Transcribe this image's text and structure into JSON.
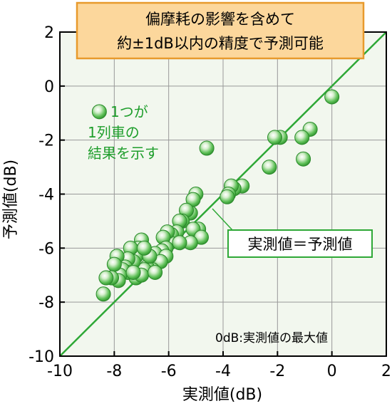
{
  "chart_data": {
    "type": "scatter",
    "title_lines": [
      "偏摩耗の影響を含めて",
      "約±1dB以内の精度で予測可能"
    ],
    "xlabel": "実測値(dB)",
    "ylabel": "予測値(dB)",
    "xlim": [
      -10,
      2
    ],
    "ylim": [
      -10,
      2
    ],
    "xticks": [
      -10,
      -8,
      -6,
      -4,
      -2,
      0,
      2
    ],
    "yticks": [
      -10,
      -8,
      -6,
      -4,
      -2,
      0,
      2
    ],
    "grid": true,
    "reference_line_label": "実測値＝予測値",
    "legend_marker_lines": [
      "1つが",
      "1列車の",
      "結果を示す"
    ],
    "footnote": "0dB:実測値の最大値",
    "colors": {
      "point": "#2ea836",
      "line": "#2ea836",
      "title_bg": "#fcd79c",
      "title_border": "#e89a2c",
      "plot_bg": "#f2f7ee",
      "annotation": "#1f9e2c"
    },
    "points": [
      [
        0,
        -0.4
      ],
      [
        -0.8,
        -1.6
      ],
      [
        -1.1,
        -1.9
      ],
      [
        -1.05,
        -2.7
      ],
      [
        -1.9,
        -1.9
      ],
      [
        -2.1,
        -1.9
      ],
      [
        -2.3,
        -3.0
      ],
      [
        -4.6,
        -2.3
      ],
      [
        -3.3,
        -3.7
      ],
      [
        -3.6,
        -3.8
      ],
      [
        -3.7,
        -3.7
      ],
      [
        -3.8,
        -4.0
      ],
      [
        -3.85,
        -4.1
      ],
      [
        -5.0,
        -4.0
      ],
      [
        -5.1,
        -4.2
      ],
      [
        -5.2,
        -4.7
      ],
      [
        -5.35,
        -4.6
      ],
      [
        -5.5,
        -5.0
      ],
      [
        -4.9,
        -5.3
      ],
      [
        -5.1,
        -5.3
      ],
      [
        -4.8,
        -5.6
      ],
      [
        -5.2,
        -5.8
      ],
      [
        -5.6,
        -5.0
      ],
      [
        -5.7,
        -5.4
      ],
      [
        -5.9,
        -5.5
      ],
      [
        -5.95,
        -5.8
      ],
      [
        -6.05,
        -5.4
      ],
      [
        -5.6,
        -5.8
      ],
      [
        -6.2,
        -5.6
      ],
      [
        -6.1,
        -6.0
      ],
      [
        -6.25,
        -6.1
      ],
      [
        -6.5,
        -6.2
      ],
      [
        -6.1,
        -6.3
      ],
      [
        -6.3,
        -6.5
      ],
      [
        -6.6,
        -6.8
      ],
      [
        -6.8,
        -6.7
      ],
      [
        -6.9,
        -6.8
      ],
      [
        -7.0,
        -5.7
      ],
      [
        -7.1,
        -6.0
      ],
      [
        -7.0,
        -6.1
      ],
      [
        -7.2,
        -6.3
      ],
      [
        -7.4,
        -6.0
      ],
      [
        -7.3,
        -6.5
      ],
      [
        -7.5,
        -6.4
      ],
      [
        -7.6,
        -6.7
      ],
      [
        -7.2,
        -7.1
      ],
      [
        -7.0,
        -7.0
      ],
      [
        -7.5,
        -6.9
      ],
      [
        -7.7,
        -6.8
      ],
      [
        -7.8,
        -7.0
      ],
      [
        -7.9,
        -6.3
      ],
      [
        -8.0,
        -6.6
      ],
      [
        -7.85,
        -7.2
      ],
      [
        -8.1,
        -7.1
      ],
      [
        -8.3,
        -7.1
      ],
      [
        -8.4,
        -7.7
      ],
      [
        -7.3,
        -6.9
      ],
      [
        -6.7,
        -6.3
      ],
      [
        -6.9,
        -6.0
      ],
      [
        -6.5,
        -6.9
      ]
    ],
    "legend_marker_point": [
      -8.55,
      -0.95
    ]
  }
}
